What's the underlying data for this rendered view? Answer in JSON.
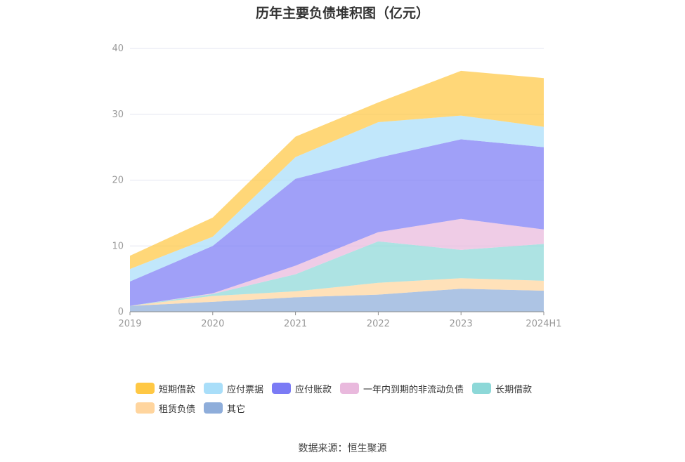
{
  "chart_data": {
    "type": "area",
    "stacked": true,
    "title": "历年主要负债堆积图（亿元）",
    "categories": [
      "2019",
      "2020",
      "2021",
      "2022",
      "2023",
      "2024H1"
    ],
    "ylim": [
      0,
      40
    ],
    "yticks": [
      0,
      10,
      20,
      30,
      40
    ],
    "grid": true,
    "legend_position": "bottom",
    "series": [
      {
        "name": "其它",
        "color": "#8eadda",
        "values": [
          0.9,
          1.5,
          2.2,
          2.6,
          3.5,
          3.2
        ]
      },
      {
        "name": "租赁负债",
        "color": "#ffd59e",
        "values": [
          0.0,
          0.9,
          0.9,
          1.8,
          1.6,
          1.5
        ]
      },
      {
        "name": "长期借款",
        "color": "#8dd8d8",
        "values": [
          0.0,
          0.3,
          2.6,
          6.3,
          4.3,
          5.6
        ]
      },
      {
        "name": "一年内到期的非流动负债",
        "color": "#e9b9dd",
        "values": [
          0.0,
          0.1,
          1.3,
          1.4,
          4.7,
          2.2
        ]
      },
      {
        "name": "应付账款",
        "color": "#7b7bf5",
        "values": [
          3.7,
          7.2,
          13.2,
          11.3,
          12.1,
          12.5
        ]
      },
      {
        "name": "应付票据",
        "color": "#a9def9",
        "values": [
          1.9,
          1.4,
          3.3,
          5.4,
          3.6,
          3.1
        ]
      },
      {
        "name": "短期借款",
        "color": "#ffc844",
        "values": [
          2.0,
          2.9,
          3.1,
          3.0,
          6.8,
          7.4
        ]
      }
    ],
    "legend_order": [
      "短期借款",
      "应付票据",
      "应付账款",
      "一年内到期的非流动负债",
      "长期借款",
      "租赁负债",
      "其它"
    ]
  },
  "source_text": "数据来源：恒生聚源"
}
